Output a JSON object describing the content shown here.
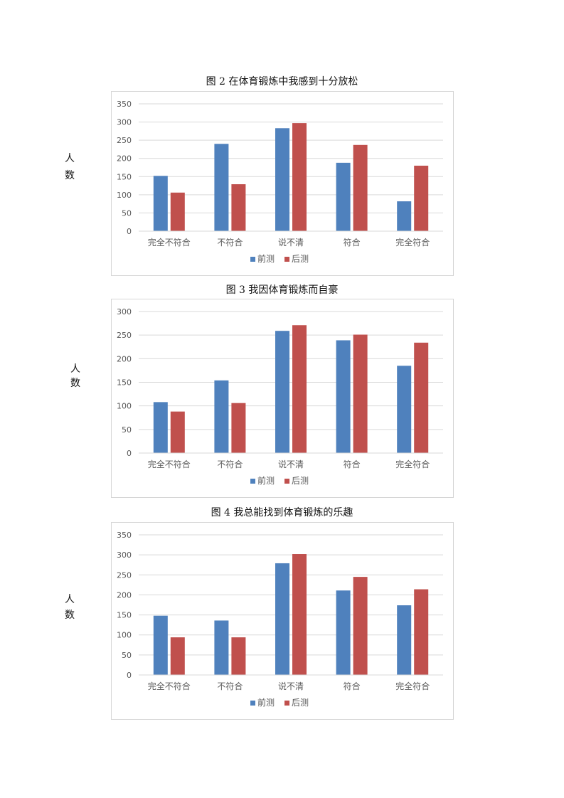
{
  "ylabel_chars": [
    "人",
    "数"
  ],
  "colors": {
    "pre": "#4f81bd",
    "post": "#c0504d",
    "grid": "#d9d9d9"
  },
  "chart_data": [
    {
      "type": "bar",
      "title": "图 2 在体育锻炼中我感到十分放松",
      "categories": [
        "完全不符合",
        "不符合",
        "说不清",
        "符合",
        "完全符合"
      ],
      "series": [
        {
          "name": "前测",
          "values": [
            152,
            240,
            283,
            188,
            82
          ]
        },
        {
          "name": "后测",
          "values": [
            106,
            129,
            297,
            237,
            180
          ]
        }
      ],
      "ylim": [
        0,
        350
      ],
      "yticks": [
        0,
        50,
        100,
        150,
        200,
        250,
        300,
        350
      ],
      "ylabel": "人数",
      "legend": "bottom",
      "grid": true
    },
    {
      "type": "bar",
      "title": "图 3 我因体育锻炼而自豪",
      "categories": [
        "完全不符合",
        "不符合",
        "说不清",
        "符合",
        "完全符合"
      ],
      "series": [
        {
          "name": "前测",
          "values": [
            108,
            154,
            259,
            239,
            185
          ]
        },
        {
          "name": "后测",
          "values": [
            88,
            106,
            271,
            251,
            234
          ]
        }
      ],
      "ylim": [
        0,
        300
      ],
      "yticks": [
        0,
        50,
        100,
        150,
        200,
        250,
        300
      ],
      "ylabel": "人数",
      "legend": "bottom",
      "grid": true
    },
    {
      "type": "bar",
      "title": "图 4 我总能找到体育锻炼的乐趣",
      "categories": [
        "完全不符合",
        "不符合",
        "说不清",
        "符合",
        "完全符合"
      ],
      "series": [
        {
          "name": "前测",
          "values": [
            148,
            136,
            279,
            211,
            174
          ]
        },
        {
          "name": "后测",
          "values": [
            94,
            94,
            302,
            245,
            214
          ]
        }
      ],
      "ylim": [
        0,
        350
      ],
      "yticks": [
        0,
        50,
        100,
        150,
        200,
        250,
        300,
        350
      ],
      "ylabel": "人数",
      "legend": "bottom",
      "grid": true
    }
  ]
}
